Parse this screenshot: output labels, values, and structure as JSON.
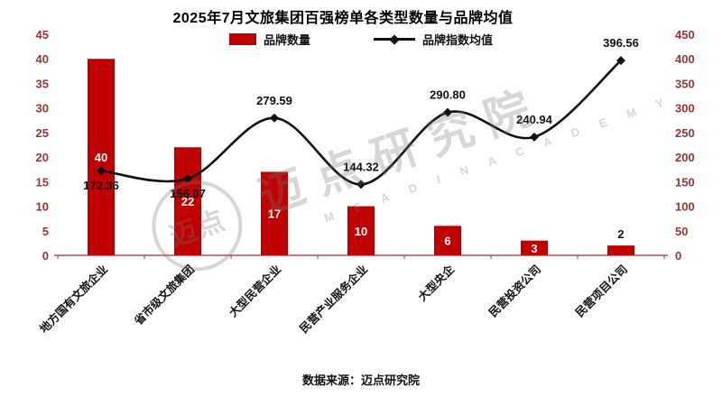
{
  "chart_data": {
    "type": "bar",
    "title": "2025年7月文旅集团百强榜单各类型数量与品牌均值",
    "categories": [
      "地方国有文旅企业",
      "省市级文旅集团",
      "大型民营企业",
      "民营产业服务企业",
      "大型央企",
      "民营投资公司",
      "民营项目公司"
    ],
    "series": [
      {
        "name": "品牌数量",
        "type": "bar",
        "axis": "left",
        "values": [
          40,
          22,
          17,
          10,
          6,
          3,
          2
        ]
      },
      {
        "name": "品牌指数均值",
        "type": "line",
        "axis": "right",
        "values": [
          172.36,
          156.07,
          279.59,
          144.32,
          290.8,
          240.94,
          396.56
        ],
        "label_positions": [
          "below",
          "below",
          "above",
          "above",
          "above",
          "above",
          "above"
        ]
      }
    ],
    "left_axis": {
      "min": 0,
      "max": 45,
      "ticks": [
        0,
        5,
        10,
        15,
        20,
        25,
        30,
        35,
        40,
        45
      ]
    },
    "right_axis": {
      "min": 0,
      "max": 450,
      "ticks": [
        0,
        50,
        100,
        150,
        200,
        250,
        300,
        350,
        400,
        450
      ]
    },
    "legend_position": "top",
    "grid": false
  },
  "colors": {
    "bar": "#c00000",
    "line": "#111111",
    "axis": "#963634"
  },
  "watermark": {
    "logo_text": "迈点",
    "text": "迈点研究院",
    "subtext": "M E A D I N   A C A D E M Y"
  },
  "source": "数据来源：迈点研究院"
}
